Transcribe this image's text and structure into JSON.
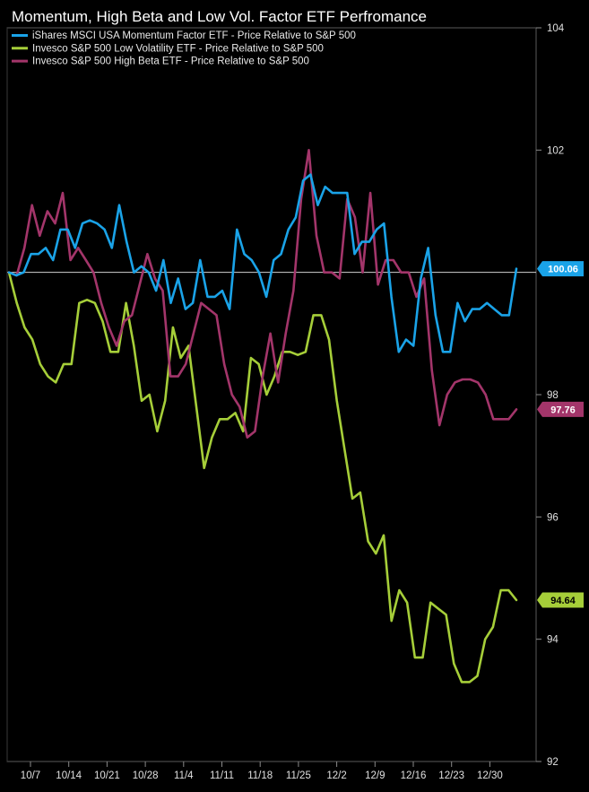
{
  "chart_data": {
    "type": "line",
    "title": "Momentum, High Beta and Low Vol. Factor ETF Perfromance",
    "xlabel": "",
    "ylabel": "",
    "ylim": [
      92,
      104
    ],
    "grid": false,
    "legend_position": "top-left",
    "x_ticks": [
      "10/7",
      "10/14",
      "10/21",
      "10/28",
      "11/4",
      "11/11",
      "11/18",
      "11/25",
      "12/2",
      "12/9",
      "12/16",
      "12/23",
      "12/30"
    ],
    "y_ticks": [
      "92",
      "94",
      "96",
      "98",
      "102",
      "104"
    ],
    "reference_line": 100,
    "series": [
      {
        "name": "iShares MSCI USA Momentum Factor ETF - Price Relative to S&P 500",
        "color": "#1aa3e8",
        "last_label": "100.06",
        "last_value": 100.06,
        "values": [
          100,
          99.95,
          100.0,
          100.3,
          100.3,
          100.4,
          100.2,
          100.7,
          100.7,
          100.4,
          100.8,
          100.85,
          100.8,
          100.7,
          100.4,
          101.1,
          100.5,
          100.0,
          100.1,
          100.0,
          99.7,
          100.2,
          99.5,
          99.9,
          99.4,
          99.5,
          100.2,
          99.6,
          99.6,
          99.7,
          99.4,
          100.7,
          100.3,
          100.2,
          100.0,
          99.6,
          100.2,
          100.3,
          100.7,
          100.9,
          101.5,
          101.6,
          101.1,
          101.4,
          101.3,
          101.3,
          101.3,
          100.3,
          100.5,
          100.5,
          100.7,
          100.8,
          99.6,
          98.7,
          98.9,
          98.8,
          99.9,
          100.4,
          99.3,
          98.7,
          98.7,
          99.5,
          99.2,
          99.4,
          99.4,
          99.5,
          99.4,
          99.3,
          99.3,
          100.06
        ]
      },
      {
        "name": "Invesco S&P 500 Low Volatility ETF - Price Relative to S&P 500",
        "color": "#a6ce39",
        "last_label": "94.64",
        "last_value": 94.64,
        "values": [
          100,
          99.5,
          99.1,
          98.9,
          98.5,
          98.3,
          98.2,
          98.5,
          98.5,
          99.5,
          99.55,
          99.5,
          99.2,
          98.7,
          98.7,
          99.5,
          98.8,
          97.9,
          98.0,
          97.4,
          97.9,
          99.1,
          98.6,
          98.8,
          97.8,
          96.8,
          97.3,
          97.6,
          97.6,
          97.7,
          97.4,
          98.6,
          98.5,
          98.0,
          98.3,
          98.7,
          98.7,
          98.65,
          98.7,
          99.3,
          99.3,
          98.9,
          97.9,
          97.1,
          96.3,
          96.4,
          95.6,
          95.4,
          95.7,
          94.3,
          94.8,
          94.6,
          93.7,
          93.7,
          94.6,
          94.5,
          94.4,
          93.6,
          93.3,
          93.3,
          93.4,
          94.0,
          94.2,
          94.8,
          94.8,
          94.64
        ]
      },
      {
        "name": "Invesco S&P 500 High Beta ETF - Price Relative to S&P 500",
        "color": "#a3356a",
        "last_label": "97.76",
        "last_value": 97.76,
        "values": [
          100,
          99.95,
          100.4,
          101.1,
          100.6,
          101.0,
          100.8,
          101.3,
          100.2,
          100.4,
          100.2,
          100.0,
          99.5,
          99.1,
          98.8,
          99.2,
          99.3,
          99.8,
          100.3,
          99.9,
          99.7,
          98.3,
          98.3,
          98.5,
          99.0,
          99.5,
          99.4,
          99.3,
          98.5,
          98.0,
          97.8,
          97.3,
          97.4,
          98.3,
          99.0,
          98.2,
          99.0,
          99.7,
          101.2,
          102.0,
          100.6,
          100.0,
          100.0,
          99.9,
          101.2,
          100.9,
          100.0,
          101.3,
          99.8,
          100.2,
          100.2,
          100.0,
          100.0,
          99.6,
          99.9,
          98.4,
          97.5,
          98.0,
          98.2,
          98.25,
          98.25,
          98.2,
          98.0,
          97.6,
          97.6,
          97.6,
          97.76
        ]
      }
    ]
  }
}
